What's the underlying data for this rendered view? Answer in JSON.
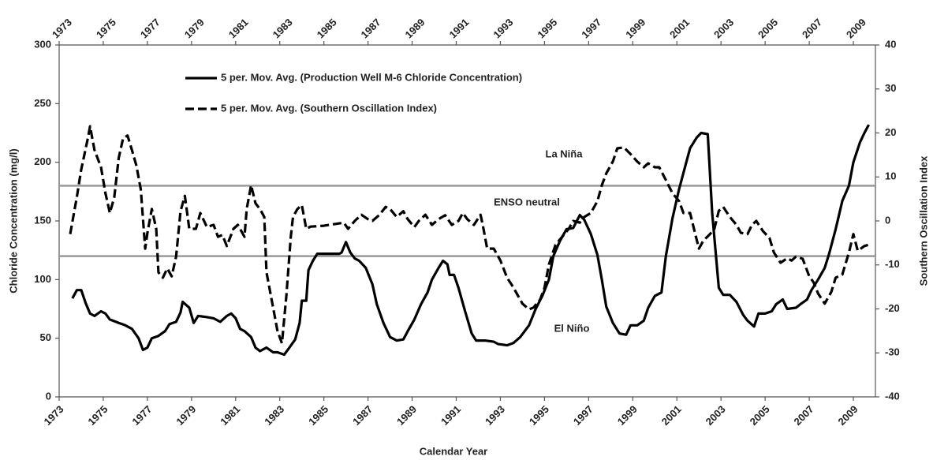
{
  "chart_data": {
    "type": "line",
    "xlabel": "Calendar Year",
    "ylabel": "Chloride Concentration (mg/l)",
    "y2label": "Southern Oscillation Index",
    "xlim": [
      1973,
      2010
    ],
    "xticks": [
      1973,
      1975,
      1977,
      1979,
      1981,
      1983,
      1985,
      1987,
      1989,
      1991,
      1993,
      1995,
      1997,
      1999,
      2001,
      2003,
      2005,
      2007,
      2009
    ],
    "ylim": [
      0,
      300
    ],
    "yticks": [
      0,
      50,
      100,
      150,
      200,
      250,
      300
    ],
    "y2lim": [
      -40,
      40
    ],
    "y2ticks": [
      -40,
      -30,
      -20,
      -10,
      0,
      10,
      20,
      30,
      40
    ],
    "hlines": [
      {
        "value": 8,
        "axis": "y2",
        "color": "#999999"
      },
      {
        "value": -8,
        "axis": "y2",
        "color": "#999999"
      }
    ],
    "annotations": [
      "La Niña",
      "ENSO neutral",
      "El Niño"
    ],
    "series": [
      {
        "name": "5 per. Mov. Avg. (Production Well M-6 Chloride Concentration)",
        "color": "#000000",
        "dash": false,
        "x": [
          1973.6,
          1973.8,
          1974.0,
          1974.2,
          1974.4,
          1974.6,
          1974.9,
          1975.1,
          1975.3,
          1975.7,
          1976.0,
          1976.3,
          1976.6,
          1976.8,
          1977.0,
          1977.2,
          1977.5,
          1977.8,
          1978.0,
          1978.3,
          1978.5,
          1978.6,
          1978.9,
          1979.1,
          1979.3,
          1979.7,
          1980.0,
          1980.3,
          1980.6,
          1980.8,
          1981.0,
          1981.2,
          1981.4,
          1981.7,
          1981.9,
          1982.1,
          1982.4,
          1982.7,
          1982.9,
          1983.2,
          1983.4,
          1983.7,
          1983.9,
          1984.0,
          1984.2,
          1984.3,
          1984.5,
          1984.7,
          1985.2,
          1985.7,
          1985.8,
          1986.0,
          1986.2,
          1986.4,
          1986.6,
          1986.9,
          1987.2,
          1987.4,
          1987.7,
          1988.0,
          1988.3,
          1988.6,
          1988.8,
          1989.1,
          1989.4,
          1989.7,
          1989.9,
          1990.2,
          1990.4,
          1990.6,
          1990.7,
          1990.9,
          1991.1,
          1991.4,
          1991.7,
          1991.9,
          1992.3,
          1992.7,
          1992.9,
          1993.3,
          1993.6,
          1993.9,
          1994.3,
          1994.6,
          1994.9,
          1995.2,
          1995.4,
          1995.7,
          1996.0,
          1996.3,
          1996.6,
          1996.8,
          1997.1,
          1997.4,
          1997.6,
          1997.8,
          1998.1,
          1998.4,
          1998.7,
          1998.9,
          1999.2,
          1999.5,
          1999.7,
          2000.0,
          2000.3,
          2000.5,
          2000.8,
          2001.1,
          2001.4,
          2001.6,
          2001.9,
          2002.1,
          2002.4,
          2002.6,
          2002.9,
          2003.1,
          2003.4,
          2003.7,
          2004.0,
          2004.2,
          2004.5,
          2004.7,
          2005.0,
          2005.3,
          2005.5,
          2005.8,
          2006.0,
          2006.4,
          2006.6,
          2006.9,
          2007.1,
          2007.4,
          2007.7,
          2007.9,
          2008.2,
          2008.5,
          2008.8,
          2009.0,
          2009.3,
          2009.5,
          2009.7
        ],
        "values": [
          84,
          91,
          91,
          80,
          71,
          69,
          73,
          71,
          66,
          63,
          61,
          58,
          50,
          40,
          42,
          50,
          52,
          56,
          62,
          64,
          72,
          81,
          76,
          63,
          69,
          68,
          67,
          64,
          69,
          71,
          67,
          58,
          56,
          51,
          42,
          39,
          42,
          38,
          38,
          36,
          41,
          49,
          63,
          82,
          82,
          108,
          116,
          122,
          122,
          122,
          123,
          132,
          123,
          118,
          116,
          110,
          96,
          79,
          63,
          51,
          48,
          49,
          56,
          66,
          79,
          89,
          100,
          110,
          116,
          113,
          104,
          104,
          93,
          73,
          54,
          48,
          48,
          47,
          45,
          44,
          46,
          51,
          61,
          75,
          86,
          100,
          120,
          133,
          143,
          144,
          155,
          151,
          139,
          121,
          100,
          77,
          63,
          54,
          53,
          61,
          61,
          65,
          76,
          86,
          89,
          120,
          152,
          177,
          198,
          212,
          221,
          225,
          224,
          157,
          93,
          87,
          87,
          81,
          70,
          65,
          60,
          71,
          71,
          73,
          79,
          83,
          75,
          76,
          79,
          83,
          91,
          100,
          110,
          122,
          143,
          167,
          180,
          200,
          217,
          225,
          232
        ]
      },
      {
        "name": "5 per. Mov. Avg. (Southern Oscillation Index)",
        "color": "#000000",
        "dash": true,
        "axis": "y2",
        "x": [
          1973.5,
          1973.8,
          1974.0,
          1974.3,
          1974.4,
          1974.6,
          1974.9,
          1975.1,
          1975.3,
          1975.5,
          1975.7,
          1975.9,
          1976.1,
          1976.3,
          1976.5,
          1976.7,
          1976.9,
          1977.0,
          1977.2,
          1977.4,
          1977.5,
          1977.7,
          1977.9,
          1978.1,
          1978.3,
          1978.5,
          1978.7,
          1978.9,
          1979.2,
          1979.4,
          1979.7,
          1980.0,
          1980.2,
          1980.4,
          1980.6,
          1980.9,
          1981.1,
          1981.4,
          1981.5,
          1981.7,
          1981.9,
          1982.1,
          1982.3,
          1982.4,
          1982.7,
          1982.9,
          1983.1,
          1983.3,
          1983.5,
          1983.6,
          1983.8,
          1984.0,
          1984.2,
          1984.4,
          1985.0,
          1985.5,
          1985.9,
          1986.1,
          1986.4,
          1986.7,
          1987.0,
          1987.2,
          1987.5,
          1987.8,
          1988.0,
          1988.3,
          1988.6,
          1988.8,
          1989.1,
          1989.3,
          1989.6,
          1989.9,
          1990.2,
          1990.5,
          1990.8,
          1991.1,
          1991.3,
          1991.5,
          1991.8,
          1992.1,
          1992.2,
          1992.4,
          1992.7,
          1993.0,
          1993.3,
          1993.6,
          1993.8,
          1994.0,
          1994.3,
          1994.5,
          1994.8,
          1995.0,
          1995.2,
          1995.5,
          1995.8,
          1996.1,
          1996.3,
          1996.6,
          1996.8,
          1997.1,
          1997.4,
          1997.6,
          1997.8,
          1998.1,
          1998.3,
          1998.6,
          1998.9,
          1999.2,
          1999.5,
          1999.7,
          2000.0,
          2000.2,
          2000.5,
          2000.8,
          2001.1,
          2001.3,
          2001.6,
          2001.8,
          2002.0,
          2002.2,
          2002.5,
          2002.7,
          2002.9,
          2003.1,
          2003.4,
          2003.7,
          2003.9,
          2004.2,
          2004.4,
          2004.6,
          2004.9,
          2005.2,
          2005.4,
          2005.7,
          2006.0,
          2006.2,
          2006.4,
          2006.7,
          2007.0,
          2007.2,
          2007.4,
          2007.7,
          2008.0,
          2008.2,
          2008.5,
          2008.8,
          2009.0,
          2009.2,
          2009.5,
          2009.7
        ],
        "values": [
          -3.0,
          5.4,
          11.7,
          18.8,
          21.5,
          16.1,
          12.2,
          6.3,
          1.8,
          5.4,
          14.3,
          18.8,
          19.4,
          16.1,
          12.6,
          7.2,
          -6.3,
          -2.7,
          2.7,
          -1.8,
          -11.7,
          -12.9,
          -10.8,
          -12.6,
          -8.1,
          2.2,
          5.7,
          -1.8,
          -1.8,
          1.8,
          -1.4,
          -0.9,
          -3.6,
          -3.2,
          -5.7,
          -1.8,
          -0.9,
          -3.6,
          2.7,
          8.1,
          4.0,
          2.7,
          0.9,
          -11.7,
          -19.7,
          -25.1,
          -27.8,
          -17.0,
          -3.6,
          0.9,
          2.7,
          3.6,
          -1.8,
          -1.3,
          -1.1,
          -0.7,
          -0.4,
          -1.8,
          0.0,
          1.4,
          0.4,
          0.0,
          1.3,
          3.2,
          2.7,
          0.9,
          2.2,
          0.4,
          -1.4,
          0.0,
          1.4,
          -0.9,
          0.4,
          1.3,
          -0.9,
          0.0,
          1.8,
          0.4,
          -0.9,
          1.4,
          -0.9,
          -6.3,
          -6.3,
          -9.0,
          -12.9,
          -15.2,
          -17.0,
          -18.8,
          -20.1,
          -19.7,
          -17.9,
          -15.2,
          -9.9,
          -5.4,
          -3.6,
          -1.8,
          0.0,
          -0.4,
          0.9,
          1.8,
          4.5,
          8.1,
          10.8,
          13.5,
          16.5,
          16.7,
          15.2,
          13.5,
          12.2,
          13.1,
          12.2,
          12.2,
          9.3,
          6.3,
          4.5,
          1.8,
          1.8,
          -2.3,
          -6.3,
          -4.5,
          -3.0,
          -1.8,
          2.3,
          3.2,
          0.9,
          -0.9,
          -2.7,
          -3.0,
          -0.9,
          0.0,
          -2.3,
          -3.9,
          -7.2,
          -9.5,
          -8.5,
          -9.0,
          -8.1,
          -8.6,
          -12.6,
          -14.0,
          -16.5,
          -18.8,
          -16.1,
          -12.9,
          -12.2,
          -7.2,
          -3.0,
          -6.8,
          -5.7,
          -5.4
        ]
      }
    ]
  }
}
